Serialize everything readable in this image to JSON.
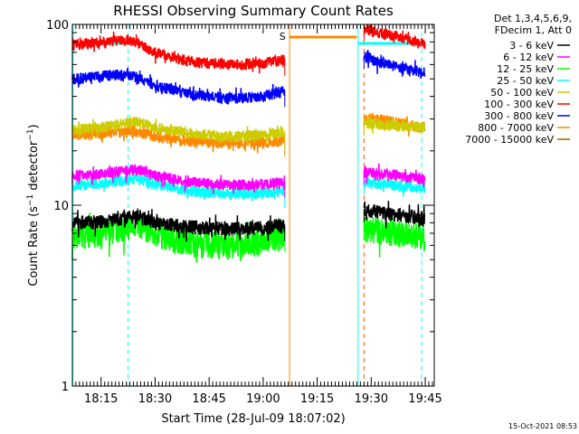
{
  "chart_data": {
    "type": "line",
    "title": "RHESSI Observing Summary Count Rates",
    "xlabel": "Start Time (28-Jul-09 18:07:02)",
    "ylabel": "Count Rate (s⁻¹ detector⁻¹)",
    "ylabel_main": "Count Rate (s",
    "ylabel_sup1": "−1",
    "ylabel_mid": " detector",
    "ylabel_sup2": "−1",
    "ylabel_end": ")",
    "y_scale": "log",
    "ylim": [
      1,
      100
    ],
    "y_ticks": [
      {
        "value": 1,
        "label": "1"
      },
      {
        "value": 10,
        "label": "10"
      },
      {
        "value": 100,
        "label": "100"
      }
    ],
    "xlim": [
      "18:07:02",
      "19:47:30"
    ],
    "x_ticks": [
      "18:15",
      "18:30",
      "18:45",
      "19:00",
      "19:15",
      "19:30",
      "19:45"
    ],
    "legend_header": [
      "Det 1,3,4,5,6,9,",
      "FDecim 1, Att 0"
    ],
    "legend_position": "top-right-outside",
    "series": [
      {
        "name": "3 - 6 keV",
        "color": "#000000",
        "segments": [
          {
            "x": [
              "18:07",
              "18:15",
              "18:22",
              "18:25",
              "18:30",
              "18:40",
              "18:50",
              "19:00",
              "19:06"
            ],
            "y": [
              8.0,
              8.1,
              8.5,
              8.8,
              8.0,
              7.6,
              7.4,
              7.5,
              7.8
            ]
          },
          {
            "x": [
              "19:28",
              "19:32",
              "19:38",
              "19:45"
            ],
            "y": [
              9.5,
              9.2,
              8.8,
              8.5
            ]
          }
        ]
      },
      {
        "name": "6 - 12 keV",
        "color": "#ff00ff",
        "segments": [
          {
            "x": [
              "18:07",
              "18:15",
              "18:22",
              "18:25",
              "18:30",
              "18:40",
              "18:50",
              "19:00",
              "19:06"
            ],
            "y": [
              14.5,
              15.0,
              15.5,
              15.8,
              14.5,
              13.5,
              13.0,
              13.0,
              13.5
            ]
          },
          {
            "x": [
              "19:28",
              "19:32",
              "19:38",
              "19:45"
            ],
            "y": [
              15.2,
              15.0,
              14.5,
              14.0
            ]
          }
        ]
      },
      {
        "name": "12 - 25 keV",
        "color": "#00ff00",
        "segments": [
          {
            "x": [
              "18:07",
              "18:15",
              "18:22",
              "18:25",
              "18:30",
              "18:40",
              "18:50",
              "19:00",
              "19:06"
            ],
            "y": [
              6.8,
              7.0,
              7.5,
              8.0,
              7.0,
              6.2,
              6.0,
              6.3,
              6.8
            ]
          },
          {
            "x": [
              "19:28",
              "19:32",
              "19:38",
              "19:45"
            ],
            "y": [
              7.5,
              7.3,
              7.0,
              6.8
            ]
          }
        ]
      },
      {
        "name": "25 - 50 keV",
        "color": "#00ffff",
        "segments": [
          {
            "x": [
              "18:07",
              "18:15",
              "18:22",
              "18:25",
              "18:30",
              "18:40",
              "18:50",
              "19:00",
              "19:06"
            ],
            "y": [
              12.8,
              13.2,
              13.8,
              14.0,
              13.0,
              12.0,
              11.5,
              11.7,
              12.0
            ]
          },
          {
            "x": [
              "19:28",
              "19:32",
              "19:38",
              "19:45"
            ],
            "y": [
              13.5,
              13.2,
              12.8,
              12.5
            ]
          }
        ]
      },
      {
        "name": "50 - 100 keV",
        "color": "#cccc00",
        "segments": [
          {
            "x": [
              "18:07",
              "18:15",
              "18:22",
              "18:25",
              "18:30",
              "18:40",
              "18:50",
              "19:00",
              "19:06"
            ],
            "y": [
              26.0,
              27.0,
              28.5,
              29.0,
              27.0,
              25.0,
              24.0,
              24.5,
              25.0
            ]
          },
          {
            "x": [
              "19:28",
              "19:32",
              "19:38",
              "19:45"
            ],
            "y": [
              28.5,
              28.0,
              27.5,
              27.0
            ]
          }
        ]
      },
      {
        "name": "100 - 300 keV",
        "color": "#ff0000",
        "segments": [
          {
            "x": [
              "18:07",
              "18:15",
              "18:22",
              "18:25",
              "18:30",
              "18:40",
              "18:50",
              "19:00",
              "19:06"
            ],
            "y": [
              77,
              80,
              82,
              80,
              70,
              62,
              60,
              61,
              64
            ]
          },
          {
            "x": [
              "19:28",
              "19:32",
              "19:38",
              "19:45"
            ],
            "y": [
              95,
              90,
              84,
              78
            ]
          }
        ]
      },
      {
        "name": "300 - 800 keV",
        "color": "#0000ff",
        "segments": [
          {
            "x": [
              "18:07",
              "18:15",
              "18:22",
              "18:25",
              "18:30",
              "18:40",
              "18:50",
              "19:00",
              "19:06"
            ],
            "y": [
              50,
              52,
              53,
              51,
              46,
              41,
              39,
              40,
              43
            ]
          },
          {
            "x": [
              "19:28",
              "19:32",
              "19:38",
              "19:45"
            ],
            "y": [
              67,
              62,
              58,
              54
            ]
          }
        ]
      },
      {
        "name": "800 - 7000 keV",
        "color": "#ff8800",
        "segments": [
          {
            "x": [
              "18:07",
              "18:15",
              "18:22",
              "18:25",
              "18:30",
              "18:40",
              "18:50",
              "19:00",
              "19:06"
            ],
            "y": [
              24.5,
              25.0,
              25.5,
              25.5,
              24.0,
              22.5,
              22.0,
              22.2,
              22.8
            ]
          },
          {
            "x": [
              "19:28",
              "19:32",
              "19:38",
              "19:45"
            ],
            "y": [
              31,
              30,
              28.5,
              27
            ]
          }
        ]
      },
      {
        "name": "7000 - 15000 keV",
        "color": "#996600",
        "segments": []
      }
    ],
    "annotations": [
      {
        "label": "S",
        "color": "#ff8800",
        "x": "19:07"
      }
    ],
    "timestamp": "15-Oct-2021 08:53"
  }
}
